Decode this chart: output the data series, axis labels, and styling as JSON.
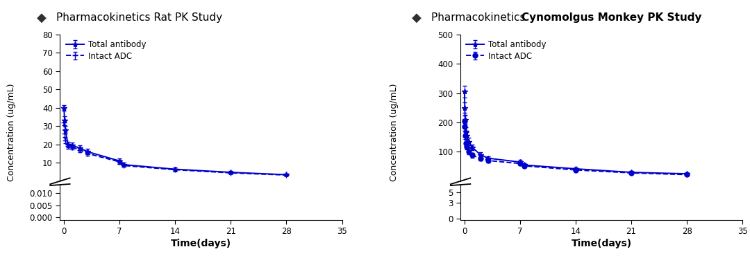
{
  "title_left": "Pharmacokinetics Rat PK Study",
  "title_right_normal": "Pharmacokinetics ",
  "title_right_bold": "Cynomolgus Monkey PK Study",
  "xlabel": "Time(days)",
  "ylabel": "Concentration (ug/mL)",
  "legend_1": "Total antibody",
  "legend_2": "Intact ADC",
  "line_color": "#0000CC",
  "bg_color": "#FFFFFF",
  "diamond_color": "#404040",
  "rat_total_x": [
    0,
    0.083,
    0.167,
    0.5,
    1,
    2,
    3,
    7,
    7.5,
    14,
    21,
    28
  ],
  "rat_total_y": [
    40,
    33,
    28,
    20,
    19.5,
    18,
    16,
    11,
    9,
    6.5,
    4.8,
    3.5
  ],
  "rat_total_err": [
    1.5,
    2.5,
    2,
    1.5,
    1.5,
    1.5,
    1.5,
    1.5,
    1,
    0.8,
    0.6,
    0.4
  ],
  "rat_intact_x": [
    0,
    0.083,
    0.167,
    0.5,
    1,
    2,
    3,
    7,
    7.5,
    14,
    21,
    28
  ],
  "rat_intact_y": [
    32,
    26,
    22,
    19,
    18.5,
    17,
    15,
    10.5,
    8.5,
    6.2,
    4.5,
    3.3
  ],
  "rat_intact_err": [
    1.5,
    2,
    1.5,
    1.2,
    1.2,
    1.2,
    1.2,
    1.2,
    0.8,
    0.6,
    0.5,
    0.3
  ],
  "rat_yticks_upper": [
    10,
    20,
    30,
    40,
    50,
    60,
    70,
    80
  ],
  "rat_ylim_upper": [
    0,
    80
  ],
  "rat_yticks_lower": [
    0.0,
    0.005,
    0.01
  ],
  "rat_ylim_lower": [
    -0.001,
    0.0135
  ],
  "rat_xticks": [
    0,
    7,
    14,
    21,
    28,
    35
  ],
  "rat_xlim": [
    -0.5,
    35
  ],
  "monkey_total_x": [
    0,
    0.042,
    0.083,
    0.167,
    0.25,
    0.5,
    1,
    2,
    3,
    7,
    7.5,
    14,
    21,
    28
  ],
  "monkey_total_y": [
    305,
    250,
    210,
    170,
    155,
    135,
    115,
    90,
    78,
    65,
    55,
    42,
    30,
    25
  ],
  "monkey_total_err": [
    20,
    18,
    15,
    14,
    12,
    12,
    10,
    9,
    7,
    7,
    6,
    5,
    4,
    3
  ],
  "monkey_intact_x": [
    0,
    0.042,
    0.083,
    0.167,
    0.25,
    0.5,
    1,
    2,
    3,
    7,
    7.5,
    14,
    21,
    28
  ],
  "monkey_intact_y": [
    205,
    185,
    155,
    130,
    118,
    102,
    88,
    78,
    70,
    60,
    52,
    38,
    28,
    22
  ],
  "monkey_intact_err": [
    18,
    14,
    12,
    11,
    10,
    10,
    8,
    8,
    6,
    6,
    5,
    4,
    3,
    2
  ],
  "monkey_yticks_upper": [
    100,
    200,
    300,
    400,
    500
  ],
  "monkey_ylim_upper": [
    0,
    500
  ],
  "monkey_yticks_lower": [
    0,
    3,
    5
  ],
  "monkey_ylim_lower": [
    -0.3,
    6.5
  ],
  "monkey_xticks": [
    0,
    7,
    14,
    21,
    28,
    35
  ],
  "monkey_xlim": [
    -0.5,
    35
  ]
}
